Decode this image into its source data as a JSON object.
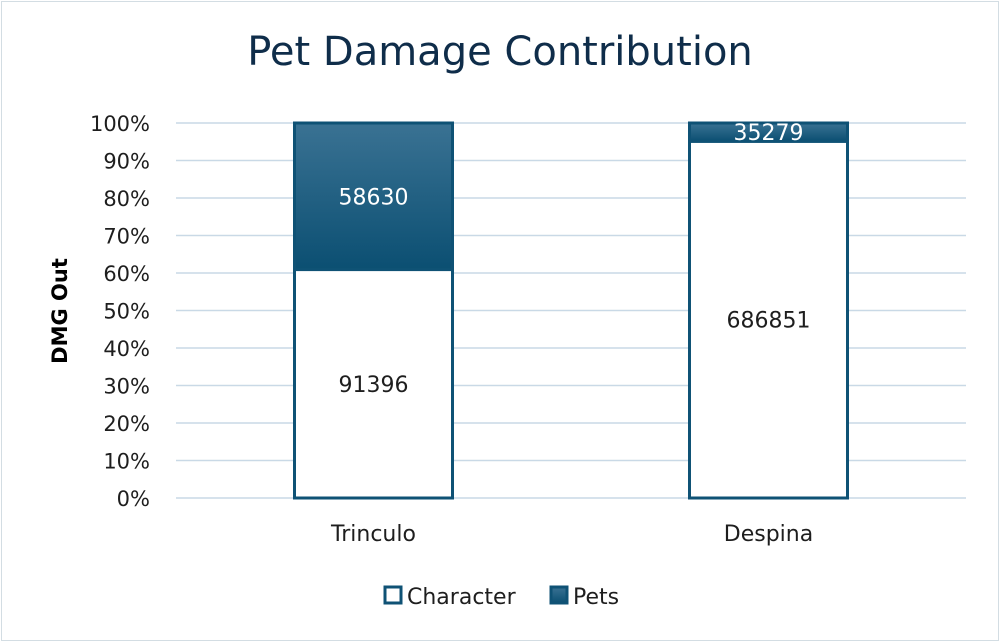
{
  "chart_data": {
    "type": "bar",
    "stacked": "percent",
    "title": "Pet Damage Contribution",
    "xlabel": "",
    "ylabel": "DMG Out",
    "categories": [
      "Trinculo",
      "Despina"
    ],
    "series": [
      {
        "name": "Character",
        "values": [
          91396,
          686851
        ],
        "color": "#ffffff",
        "label_color": "#1e1e1e"
      },
      {
        "name": "Pets",
        "values": [
          58630,
          35279
        ],
        "color": "#0f5275",
        "label_color": "#ffffff"
      }
    ],
    "ylim": [
      0,
      100
    ],
    "yticks": [
      "0%",
      "10%",
      "20%",
      "30%",
      "40%",
      "50%",
      "60%",
      "70%",
      "80%",
      "90%",
      "100%"
    ],
    "grid": true,
    "legend_position": "bottom",
    "bar_outline_color": "#0f5275"
  }
}
